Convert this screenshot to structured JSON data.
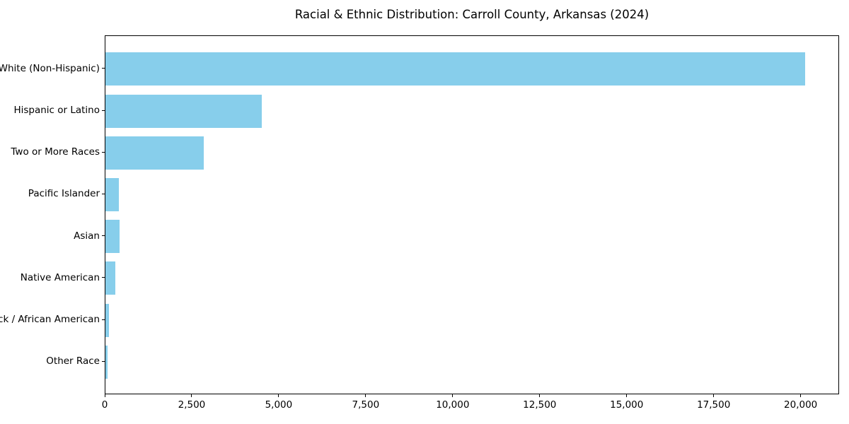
{
  "title": "Racial & Ethnic Distribution: Carroll County, Arkansas (2024)",
  "colors": {
    "bar": "#87CEEB",
    "spine": "#000000",
    "text": "#000000",
    "background": "#FFFFFF"
  },
  "chart_data": {
    "type": "bar",
    "orientation": "horizontal",
    "title": "Racial & Ethnic Distribution: Carroll County, Arkansas (2024)",
    "categories": [
      "White (Non-Hispanic)",
      "Hispanic or Latino",
      "Two or More Races",
      "Pacific Islander",
      "Asian",
      "Native American",
      "Black / African American",
      "Other Race"
    ],
    "values": [
      20100,
      4500,
      2830,
      380,
      400,
      280,
      95,
      65
    ],
    "xlabel": "",
    "ylabel": "",
    "xlim": [
      0,
      21105
    ],
    "xticks": [
      0,
      2500,
      5000,
      7500,
      10000,
      12500,
      15000,
      17500,
      20000
    ],
    "xtick_labels": [
      "0",
      "2,500",
      "5,000",
      "7,500",
      "10,000",
      "12,500",
      "15,000",
      "17,500",
      "20,000"
    ],
    "grid": false,
    "legend": null,
    "bar_color": "#87CEEB"
  }
}
